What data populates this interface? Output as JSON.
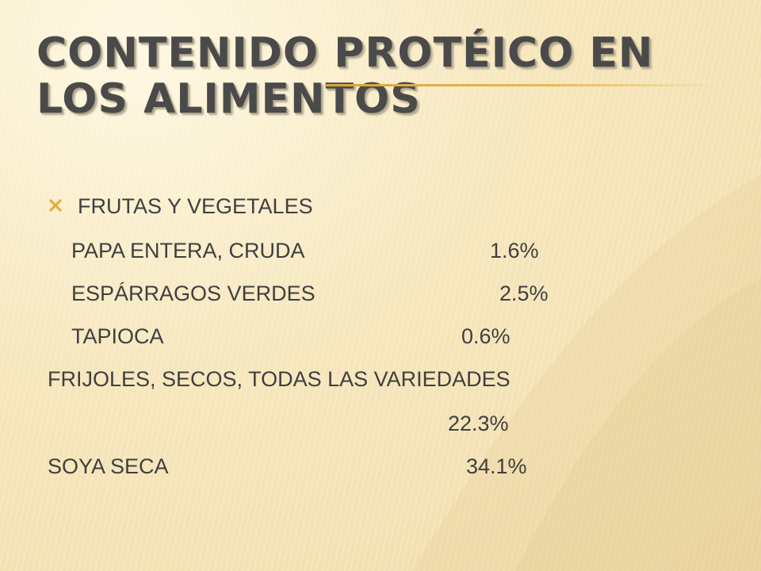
{
  "slide": {
    "title_line_1": "CONTENIDO PROTÉICO EN",
    "title_line_2": "LOS ALIMENTOS",
    "accent_color": "#e2ad45",
    "bullet_icon": "x-mark-icon"
  },
  "content": {
    "category": "FRUTAS Y VEGETALES",
    "items": [
      {
        "name": "PAPA ENTERA, CRUDA",
        "value": "1.6%"
      },
      {
        "name": "ESPÁRRAGOS VERDES",
        "value": "2.5%"
      },
      {
        "name": "TAPIOCA",
        "value": "0.6%"
      },
      {
        "name": "FRIJOLES, SECOS, TODAS LAS VARIEDADES",
        "value": "22.3%"
      },
      {
        "name": "SOYA SECA",
        "value": "34.1%"
      }
    ]
  }
}
